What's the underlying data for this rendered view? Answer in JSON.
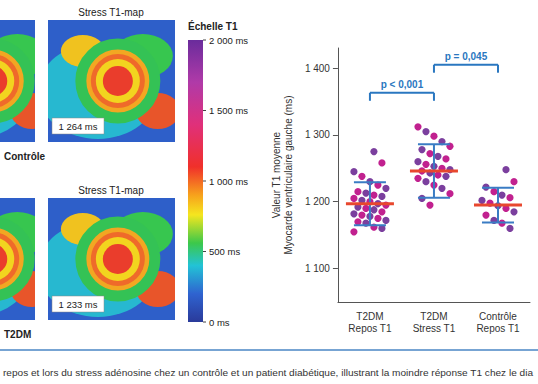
{
  "chart_data": {
    "type": "scatter",
    "ylabel": "Valeur T1 moyenne\nMyocarde ventriculaire gauche (ms)",
    "categories": [
      "T2DM\nRepos T1",
      "T2DM\nStress T1",
      "Contrôle\nRepos T1"
    ],
    "values": [
      [
        1155,
        1160,
        1162,
        1168,
        1170,
        1172,
        1175,
        1178,
        1180,
        1182,
        1185,
        1188,
        1190,
        1192,
        1195,
        1197,
        1200,
        1202,
        1205,
        1208,
        1210,
        1213,
        1215,
        1220,
        1225,
        1230,
        1238,
        1245,
        1258,
        1275
      ],
      [
        1195,
        1205,
        1212,
        1220,
        1225,
        1230,
        1235,
        1238,
        1240,
        1243,
        1246,
        1248,
        1250,
        1253,
        1256,
        1260,
        1264,
        1268,
        1272,
        1278,
        1283,
        1290,
        1298,
        1305,
        1312
      ],
      [
        1160,
        1168,
        1172,
        1180,
        1185,
        1190,
        1194,
        1198,
        1202,
        1206,
        1210,
        1215,
        1222,
        1230,
        1248
      ]
    ],
    "means": [
      1197,
      1246,
      1195
    ],
    "sd": [
      32,
      40,
      26
    ],
    "color": "#7b3f9e",
    "ylim": [
      1050,
      1430
    ],
    "yticks": [
      {
        "value": 1100,
        "label": "1 100"
      },
      {
        "value": 1200,
        "label": "1 200"
      },
      {
        "value": 1300,
        "label": "1 300"
      },
      {
        "value": 1400,
        "label": "1 400"
      }
    ],
    "grid": false,
    "annotations": [
      {
        "text": "p < 0,001",
        "between": [
          "T2DM\nRepos T1",
          "T2DM\nStress T1"
        ],
        "y": 1363
      },
      {
        "text": "p = 0,045",
        "between": [
          "T2DM\nStress T1",
          "Contrôle\nRepos T1"
        ],
        "y": 1405
      }
    ]
  },
  "panels": [
    {
      "title": "Stress T1-map",
      "value_label": "1 264 ms",
      "group": "Contrôle"
    },
    {
      "title": "Stress T1-map",
      "value_label": "1 233 ms",
      "group": "T2DM"
    }
  ],
  "color_scale": {
    "title": "Échelle T1",
    "range": [
      0,
      2000
    ],
    "ticks": [
      {
        "value": 2000,
        "label": "2 000 ms"
      },
      {
        "value": 1500,
        "label": "1 500 ms"
      },
      {
        "value": 1000,
        "label": "1 000 ms"
      },
      {
        "value": 500,
        "label": "500 ms"
      },
      {
        "value": 0,
        "label": "0 ms"
      }
    ]
  },
  "caption": "repos et lors du stress adénosine chez un contrôle et un patient diabétique, illustrant la moindre réponse T1 chez le dia"
}
